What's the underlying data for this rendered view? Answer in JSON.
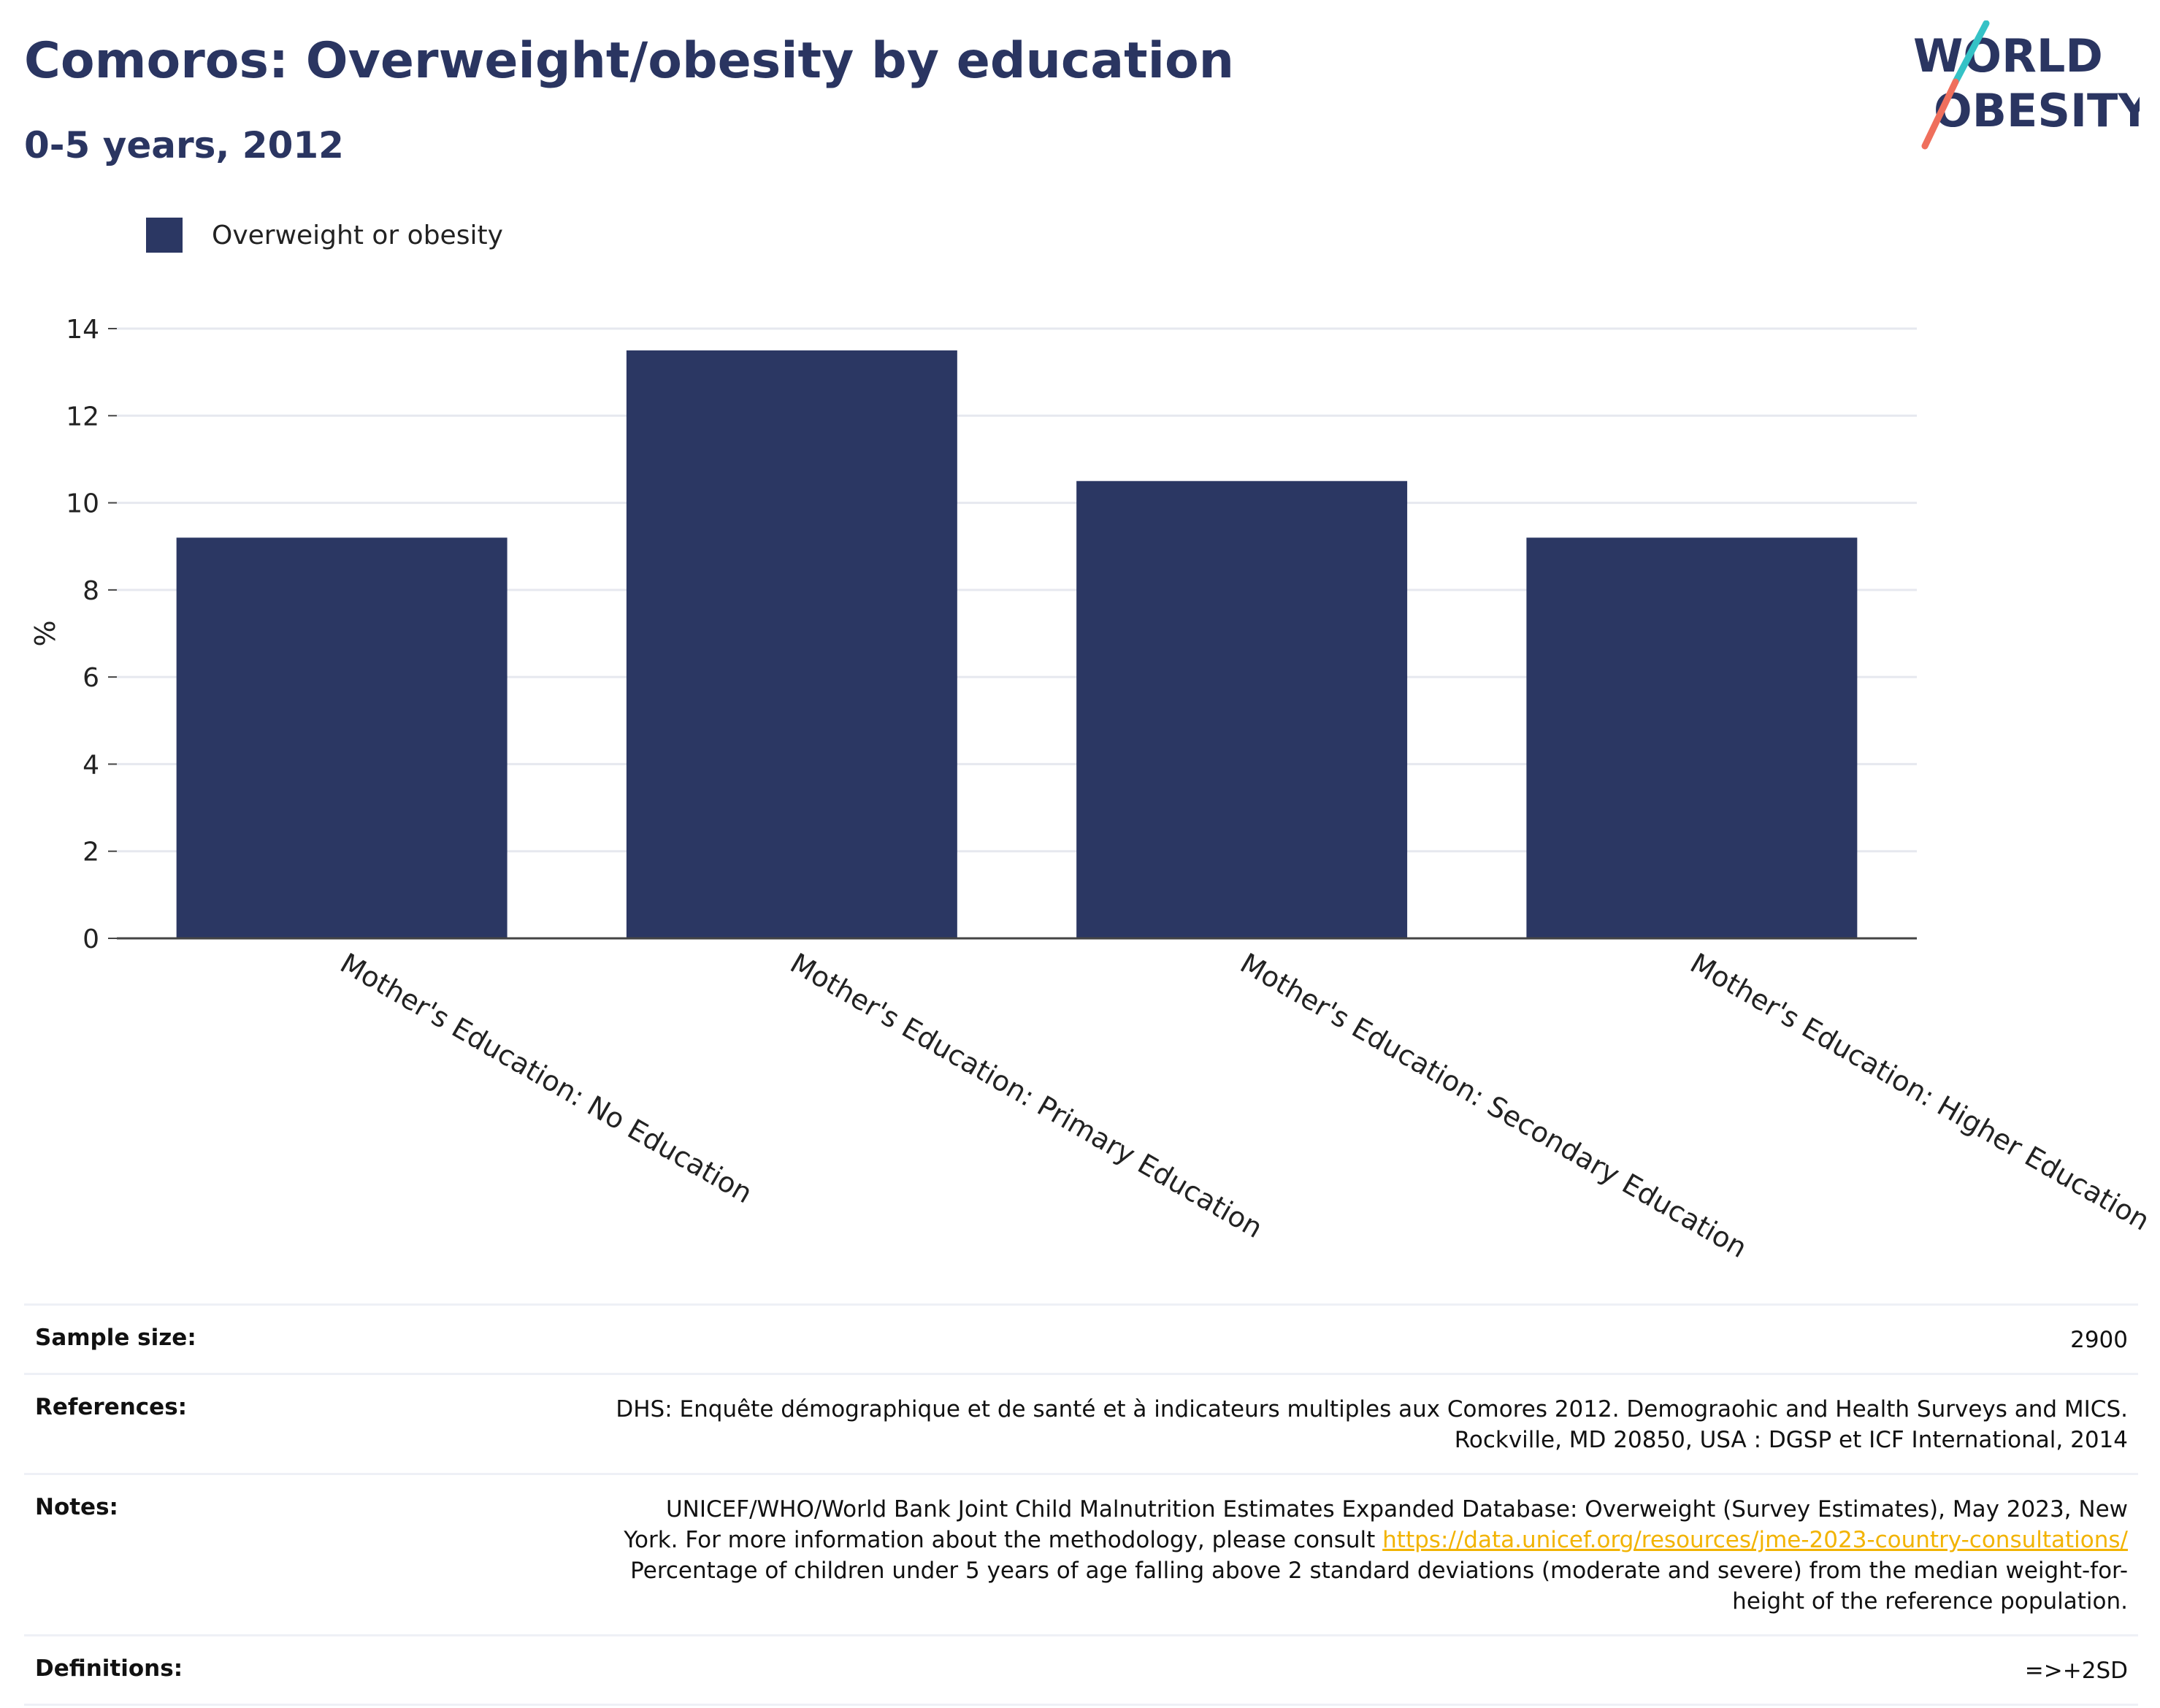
{
  "header": {
    "title": "Comoros: Overweight/obesity by education",
    "subtitle": "0-5 years, 2012"
  },
  "logo": {
    "line1": "WORLD",
    "line2": "OBESITY"
  },
  "colors": {
    "bar": "#2b3763",
    "title": "#2a3561",
    "link": "#f2b300",
    "logo_teal": "#35c2c6",
    "logo_coral": "#ef6f5c"
  },
  "chart_data": {
    "type": "bar",
    "categories": [
      "Mother's Education: No Education",
      "Mother's Education: Primary Education",
      "Mother's Education: Secondary Education",
      "Mother's Education: Higher Education"
    ],
    "series": [
      {
        "name": "Overweight or obesity",
        "values": [
          9.2,
          13.5,
          10.5,
          9.2
        ]
      }
    ],
    "ylabel": "%",
    "ylim": [
      0,
      14
    ],
    "yticks": [
      0,
      2,
      4,
      6,
      8,
      10,
      12,
      14
    ],
    "grid": true,
    "legend": "top-left"
  },
  "footer": {
    "sample_size": {
      "label": "Sample size:",
      "value": "2900"
    },
    "references": {
      "label": "References:",
      "line1": "DHS: Enquête démographique et de santé et à indicateurs multiples aux Comores 2012. Demograohic and Health Surveys and MICS.",
      "line2": "Rockville, MD 20850, USA : DGSP et ICF International, 2014"
    },
    "notes": {
      "label": "Notes:",
      "line1": "UNICEF/WHO/World Bank Joint Child Malnutrition Estimates Expanded Database: Overweight (Survey Estimates), May 2023, New",
      "line2_prefix": "York. For more information about the methodology, please consult",
      "link": "https://data.unicef.org/resources/jme-2023-country-consultations/",
      "line3": "Percentage of children under 5 years of age falling above 2 standard deviations (moderate and severe) from the median weight-for-",
      "line4": "height of the reference population."
    },
    "definitions": {
      "label": "Definitions:",
      "value": "=>+2SD"
    }
  }
}
